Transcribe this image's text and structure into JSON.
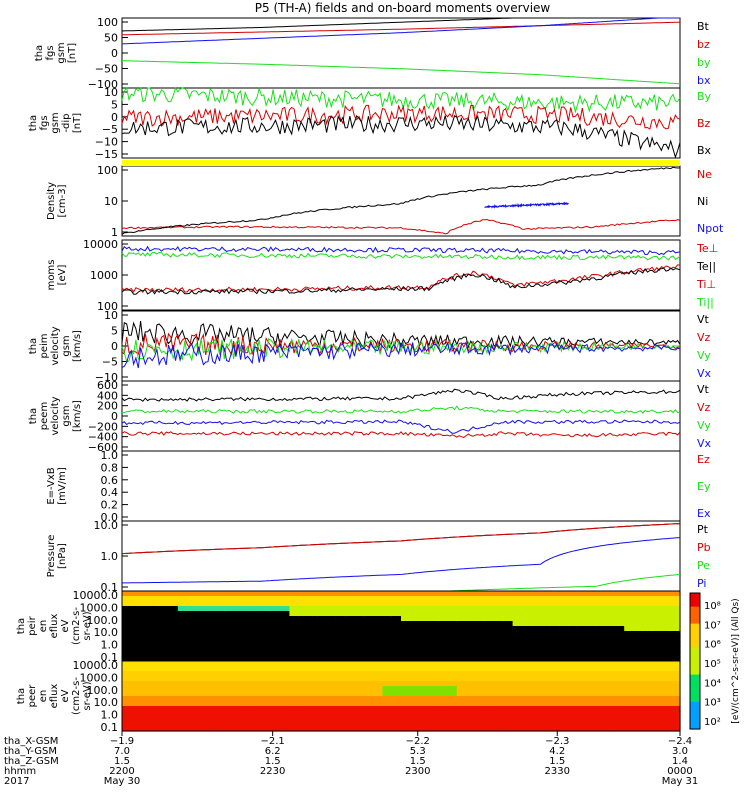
{
  "title": "P5 (TH-A) fields and on-board moments overview",
  "colors": {
    "black": "#000000",
    "red": "#d40000",
    "green": "#18e018",
    "blue": "#1010ee",
    "yellow": "#ffff00"
  },
  "chart_data": [
    {
      "type": "line",
      "ylabel": [
        "tha",
        "fgs",
        "gsm",
        "[nT]"
      ],
      "yticks": [
        "100",
        "50",
        "0",
        "−50",
        "−100"
      ],
      "ylim": [
        -100,
        100
      ],
      "legend": [
        {
          "label": "Bt",
          "color": "#000000"
        },
        {
          "label": "bz",
          "color": "#d40000"
        },
        {
          "label": "by",
          "color": "#18e018"
        },
        {
          "label": "bx",
          "color": "#1010ee"
        }
      ],
      "series": [
        {
          "name": "Bt",
          "x": [
            0,
            0.25,
            0.5,
            0.75,
            1.0
          ],
          "values": [
            63,
            73,
            88,
            103,
            120
          ]
        },
        {
          "name": "bz",
          "x": [
            0,
            0.25,
            0.5,
            0.75,
            1.0
          ],
          "values": [
            52,
            60,
            68,
            78,
            88
          ]
        },
        {
          "name": "by",
          "x": [
            0,
            0.25,
            0.5,
            0.75,
            1.0
          ],
          "values": [
            -22,
            -32,
            -45,
            -62,
            -88
          ]
        },
        {
          "name": "bx",
          "x": [
            0,
            0.25,
            0.5,
            0.75,
            1.0
          ],
          "values": [
            26,
            42,
            58,
            78,
            104
          ]
        }
      ]
    },
    {
      "type": "line",
      "ylabel": [
        "tha",
        "fgs",
        "gsm",
        "-dip",
        "[nT]"
      ],
      "yticks": [
        "10",
        "5",
        "0",
        "−5",
        "−10",
        "−15"
      ],
      "ylim": [
        -18,
        10
      ],
      "legend": [
        {
          "label": "By",
          "color": "#18e018"
        },
        {
          "label": "Bz",
          "color": "#d40000"
        },
        {
          "label": "Bx",
          "color": "#000000"
        }
      ],
      "series": [
        {
          "name": "By",
          "x": [
            0,
            0.3,
            0.55,
            0.8,
            1.0
          ],
          "values": [
            8,
            6,
            5,
            4,
            4
          ]
        },
        {
          "name": "Bz",
          "x": [
            0,
            0.3,
            0.55,
            0.8,
            1.0
          ],
          "values": [
            -2,
            -1,
            0,
            -1,
            -4
          ]
        },
        {
          "name": "Bx",
          "x": [
            0,
            0.3,
            0.55,
            0.8,
            1.0
          ],
          "values": [
            -6,
            -5,
            -4,
            -6,
            -15
          ]
        }
      ]
    },
    {
      "type": "line",
      "ylabel": [
        "Density",
        "[cm-3]"
      ],
      "yticks": [
        "100",
        "10",
        "1"
      ],
      "yscale": "log",
      "ylim": [
        0.5,
        200
      ],
      "legend": [
        {
          "label": "Ne",
          "color": "#d40000"
        },
        {
          "label": "Ni",
          "color": "#000000"
        },
        {
          "label": "Npot",
          "color": "#1010ee"
        }
      ],
      "series": [
        {
          "name": "Ne",
          "x": [
            0,
            0.2,
            0.5,
            0.58,
            0.65,
            0.72,
            0.85,
            1.0
          ],
          "values": [
            1.0,
            1.1,
            1.0,
            0.6,
            2.0,
            0.9,
            1.1,
            2.0
          ]
        },
        {
          "name": "Ni",
          "x": [
            0,
            0.25,
            0.5,
            0.75,
            1.0
          ],
          "values": [
            0.6,
            2.0,
            8,
            40,
            180
          ]
        },
        {
          "name": "Npot",
          "x": [
            0.65,
            0.8
          ],
          "values": [
            6,
            8
          ]
        }
      ]
    },
    {
      "type": "line",
      "ylabel": [
        "moms",
        "[eV]"
      ],
      "yticks": [
        "10000",
        "1000",
        "100"
      ],
      "yscale": "log",
      "ylim": [
        20,
        11000
      ],
      "legend": [
        {
          "label": "Te⊥",
          "color": "#d40000"
        },
        {
          "label": "Te||",
          "color": "#000000"
        },
        {
          "label": "Ti⊥",
          "color": "#d40000"
        },
        {
          "label": "Ti||",
          "color": "#18e018"
        }
      ],
      "series": [
        {
          "name": "Ti⊥",
          "x": [
            0,
            0.3,
            0.55,
            0.63,
            0.7,
            0.8,
            0.86,
            1.0
          ],
          "values": [
            120,
            130,
            160,
            600,
            180,
            300,
            450,
            1000
          ]
        },
        {
          "name": "Te||",
          "x": [
            0,
            0.3,
            0.55,
            0.63,
            0.7,
            0.8,
            0.86,
            1.0
          ],
          "values": [
            100,
            110,
            140,
            500,
            150,
            250,
            380,
            900
          ]
        },
        {
          "name": "Ti||",
          "x": [
            0,
            0.5,
            1.0
          ],
          "values": [
            3000,
            2500,
            2200
          ]
        },
        {
          "name": "blue",
          "x": [
            0,
            0.5,
            1.0
          ],
          "values": [
            5000,
            4500,
            3500
          ]
        }
      ]
    },
    {
      "type": "line",
      "ylabel": [
        "tha",
        "peim",
        "velocity",
        "gsm",
        "[km/s]"
      ],
      "yticks": [
        "10",
        "5",
        "0",
        "−5",
        "−10"
      ],
      "ylim": [
        -10,
        10
      ],
      "legend": [
        {
          "label": "Vt",
          "color": "#000000"
        },
        {
          "label": "Vz",
          "color": "#d40000"
        },
        {
          "label": "Vy",
          "color": "#18e018"
        },
        {
          "label": "Vx",
          "color": "#1010ee"
        }
      ],
      "series": [
        {
          "name": "Vt",
          "x": [
            0,
            0.5,
            1.0
          ],
          "values": [
            4,
            1.5,
            1
          ]
        },
        {
          "name": "Vz",
          "x": [
            0,
            0.5,
            1.0
          ],
          "values": [
            0.5,
            0,
            0
          ]
        },
        {
          "name": "Vy",
          "x": [
            0,
            0.5,
            1.0
          ],
          "values": [
            -1,
            -0.5,
            0
          ]
        },
        {
          "name": "Vx",
          "x": [
            0,
            0.5,
            1.0
          ],
          "values": [
            -3,
            -1,
            -0.5
          ]
        }
      ]
    },
    {
      "type": "line",
      "ylabel": [
        "tha",
        "peem",
        "velocity",
        "gsm",
        "[km/s]"
      ],
      "yticks": [
        "600",
        "400",
        "200",
        "0",
        "−200",
        "−400",
        "−600"
      ],
      "ylim": [
        -600,
        600
      ],
      "legend": [
        {
          "label": "Vt",
          "color": "#000000"
        },
        {
          "label": "Vz",
          "color": "#d40000"
        },
        {
          "label": "Vy",
          "color": "#18e018"
        },
        {
          "label": "Vx",
          "color": "#1010ee"
        }
      ],
      "series": [
        {
          "name": "Vt",
          "x": [
            0,
            0.5,
            0.6,
            0.68,
            0.8,
            1.0
          ],
          "values": [
            280,
            300,
            450,
            300,
            380,
            420
          ]
        },
        {
          "name": "Vy",
          "x": [
            0,
            0.5,
            0.6,
            0.68,
            0.8,
            1.0
          ],
          "values": [
            80,
            80,
            140,
            80,
            80,
            80
          ]
        },
        {
          "name": "Vx",
          "x": [
            0,
            0.5,
            0.6,
            0.68,
            0.8,
            1.0
          ],
          "values": [
            -120,
            -100,
            -280,
            -100,
            -100,
            -100
          ]
        },
        {
          "name": "Vz",
          "x": [
            0,
            0.5,
            0.6,
            0.68,
            0.8,
            1.0
          ],
          "values": [
            -300,
            -300,
            -350,
            -300,
            -340,
            -300
          ]
        }
      ]
    },
    {
      "type": "line",
      "ylabel": [
        "E=-VxB",
        "[mV/m]"
      ],
      "yticks": [
        "1.0",
        "0.8",
        "0.6",
        "0.4",
        "0.2",
        "0.0"
      ],
      "ylim": [
        0,
        1
      ],
      "legend": [
        {
          "label": "Ez",
          "color": "#d40000"
        },
        {
          "label": "Ey",
          "color": "#18e018"
        },
        {
          "label": "Ex",
          "color": "#1010ee"
        }
      ],
      "series": []
    },
    {
      "type": "line",
      "ylabel": [
        "Pressure",
        "[nPa]"
      ],
      "yticks": [
        "10.0",
        "1.0",
        "0.1"
      ],
      "yscale": "log",
      "ylim": [
        0.06,
        25
      ],
      "legend": [
        {
          "label": "Pt",
          "color": "#000000"
        },
        {
          "label": "Pb",
          "color": "#d40000"
        },
        {
          "label": "Pe",
          "color": "#18e018"
        },
        {
          "label": "Pi",
          "color": "#1010ee"
        }
      ],
      "series": [
        {
          "name": "Pt",
          "x": [
            0,
            0.25,
            0.5,
            0.75,
            1.0
          ],
          "values": [
            1.5,
            2.5,
            4.5,
            9,
            20
          ]
        },
        {
          "name": "Pb",
          "x": [
            0,
            0.25,
            0.5,
            0.75,
            1.0
          ],
          "values": [
            1.5,
            2.5,
            4.5,
            9,
            20
          ]
        },
        {
          "name": "Pi",
          "x": [
            0,
            0.25,
            0.5,
            0.75,
            1.0
          ],
          "values": [
            0.12,
            0.14,
            0.25,
            0.6,
            6
          ]
        },
        {
          "name": "Pe",
          "x": [
            0,
            0.5,
            0.85,
            1.0
          ],
          "values": [
            0.05,
            0.05,
            0.09,
            0.25
          ]
        }
      ]
    },
    {
      "type": "heatmap",
      "ylabel": [
        "tha",
        "peir",
        "en",
        "eflux",
        "eV",
        "(cm2-s-",
        "sr-eV)"
      ],
      "yticks": [
        "10000.0",
        "1000.0",
        "100.0",
        "10.0",
        "1.0",
        "0.1"
      ]
    },
    {
      "type": "heatmap",
      "ylabel": [
        "tha",
        "peer",
        "en",
        "eflux",
        "eV",
        "(cm2-s-",
        "sr-eV)"
      ],
      "yticks": [
        "10000.0",
        "1000.0",
        "100.0",
        "10.0",
        "1.0",
        "0.1"
      ]
    }
  ],
  "colorbar": {
    "ticks": [
      "10⁸",
      "10⁷",
      "10⁶",
      "10⁵",
      "10⁴",
      "10³",
      "10²"
    ],
    "label": "[eV/(cm^2-s-sr-eV)] (All Qs)"
  },
  "xaxis": {
    "rows": [
      {
        "label": "tha_X-GSM",
        "values": [
          "−1.9",
          "−2.1",
          "−2.2",
          "−2.3",
          "−2.4"
        ]
      },
      {
        "label": "tha_Y-GSM",
        "values": [
          "7.0",
          "6.2",
          "5.3",
          "4.2",
          "3.0"
        ]
      },
      {
        "label": "tha_Z-GSM",
        "values": [
          "1.5",
          "1.5",
          "1.5",
          "1.5",
          "1.4"
        ]
      },
      {
        "label": "hhmm",
        "values": [
          "2200",
          "2230",
          "2300",
          "2330",
          "0000"
        ]
      },
      {
        "label": "2017",
        "values": [
          "May 30",
          "",
          "",
          "",
          "May 31"
        ]
      }
    ]
  }
}
